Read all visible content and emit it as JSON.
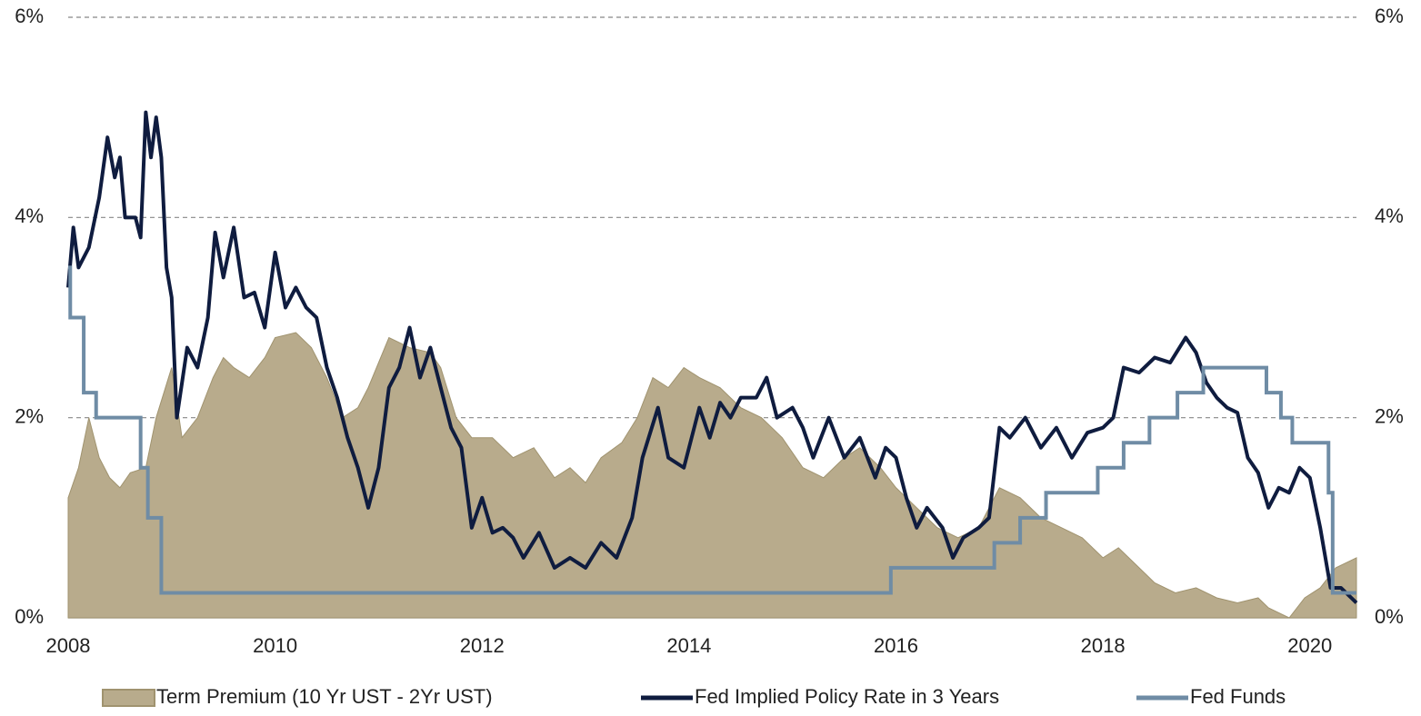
{
  "chart_data": {
    "type": "line",
    "xlim": [
      2008,
      2020.45
    ],
    "xticks": [
      2008,
      2010,
      2012,
      2014,
      2016,
      2018,
      2020
    ],
    "ylim": [
      0,
      6
    ],
    "yticks": [
      {
        "value": 0,
        "label": "0%"
      },
      {
        "value": 2,
        "label": "2%"
      },
      {
        "value": 4,
        "label": "4%"
      },
      {
        "value": 6,
        "label": "6%"
      }
    ],
    "y2lim": [
      0,
      6
    ],
    "y2ticks": [
      {
        "value": 0,
        "label": "0%"
      },
      {
        "value": 2,
        "label": "2%"
      },
      {
        "value": 4,
        "label": "4%"
      },
      {
        "value": 6,
        "label": "6%"
      }
    ],
    "grid": true,
    "legend": "bottom",
    "series": [
      {
        "name": "Term Premium (10 Yr UST - 2Yr UST)",
        "style": "area",
        "color": "#b8ab8c",
        "x": [
          2008.0,
          2008.1,
          2008.2,
          2008.3,
          2008.4,
          2008.5,
          2008.6,
          2008.75,
          2008.85,
          2009.0,
          2009.1,
          2009.25,
          2009.4,
          2009.5,
          2009.6,
          2009.75,
          2009.9,
          2010.0,
          2010.2,
          2010.35,
          2010.5,
          2010.65,
          2010.8,
          2010.9,
          2011.1,
          2011.3,
          2011.5,
          2011.6,
          2011.75,
          2011.9,
          2012.1,
          2012.3,
          2012.5,
          2012.7,
          2012.85,
          2013.0,
          2013.15,
          2013.35,
          2013.5,
          2013.65,
          2013.8,
          2013.95,
          2014.1,
          2014.3,
          2014.5,
          2014.7,
          2014.9,
          2015.1,
          2015.3,
          2015.5,
          2015.65,
          2015.85,
          2016.0,
          2016.2,
          2016.4,
          2016.6,
          2016.8,
          2017.0,
          2017.2,
          2017.4,
          2017.6,
          2017.8,
          2018.0,
          2018.15,
          2018.3,
          2018.5,
          2018.7,
          2018.9,
          2019.1,
          2019.3,
          2019.5,
          2019.6,
          2019.8,
          2019.95,
          2020.1,
          2020.25,
          2020.45
        ],
        "values": [
          1.2,
          1.5,
          2.0,
          1.6,
          1.4,
          1.3,
          1.45,
          1.5,
          2.0,
          2.5,
          1.8,
          2.0,
          2.4,
          2.6,
          2.5,
          2.4,
          2.6,
          2.8,
          2.85,
          2.7,
          2.4,
          2.0,
          2.1,
          2.3,
          2.8,
          2.7,
          2.65,
          2.5,
          2.0,
          1.8,
          1.8,
          1.6,
          1.7,
          1.4,
          1.5,
          1.35,
          1.6,
          1.75,
          2.0,
          2.4,
          2.3,
          2.5,
          2.4,
          2.3,
          2.1,
          2.0,
          1.8,
          1.5,
          1.4,
          1.6,
          1.7,
          1.5,
          1.3,
          1.1,
          0.9,
          0.8,
          0.9,
          1.3,
          1.2,
          1.0,
          0.9,
          0.8,
          0.6,
          0.7,
          0.55,
          0.35,
          0.25,
          0.3,
          0.2,
          0.15,
          0.2,
          0.1,
          0.0,
          0.2,
          0.3,
          0.5,
          0.6
        ]
      },
      {
        "name": "Fed Implied Policy Rate in 3 Years",
        "style": "line",
        "color": "#0f1c3f",
        "x": [
          2008.0,
          2008.05,
          2008.1,
          2008.2,
          2008.3,
          2008.38,
          2008.45,
          2008.5,
          2008.55,
          2008.65,
          2008.7,
          2008.75,
          2008.8,
          2008.85,
          2008.9,
          2008.95,
          2009.0,
          2009.05,
          2009.15,
          2009.25,
          2009.35,
          2009.42,
          2009.5,
          2009.6,
          2009.7,
          2009.8,
          2009.9,
          2010.0,
          2010.1,
          2010.2,
          2010.3,
          2010.4,
          2010.5,
          2010.6,
          2010.7,
          2010.8,
          2010.9,
          2011.0,
          2011.1,
          2011.2,
          2011.3,
          2011.4,
          2011.5,
          2011.6,
          2011.7,
          2011.8,
          2011.9,
          2012.0,
          2012.1,
          2012.2,
          2012.3,
          2012.4,
          2012.55,
          2012.7,
          2012.85,
          2013.0,
          2013.15,
          2013.3,
          2013.45,
          2013.55,
          2013.7,
          2013.8,
          2013.95,
          2014.1,
          2014.2,
          2014.3,
          2014.4,
          2014.5,
          2014.65,
          2014.75,
          2014.85,
          2015.0,
          2015.1,
          2015.2,
          2015.35,
          2015.5,
          2015.65,
          2015.8,
          2015.9,
          2016.0,
          2016.1,
          2016.2,
          2016.3,
          2016.45,
          2016.55,
          2016.65,
          2016.8,
          2016.9,
          2017.0,
          2017.1,
          2017.25,
          2017.4,
          2017.55,
          2017.7,
          2017.85,
          2018.0,
          2018.1,
          2018.2,
          2018.35,
          2018.5,
          2018.65,
          2018.8,
          2018.9,
          2019.0,
          2019.1,
          2019.2,
          2019.3,
          2019.4,
          2019.5,
          2019.6,
          2019.7,
          2019.8,
          2019.9,
          2020.0,
          2020.1,
          2020.2,
          2020.3,
          2020.45
        ],
        "values": [
          3.3,
          3.9,
          3.5,
          3.7,
          4.2,
          4.8,
          4.4,
          4.6,
          4.0,
          4.0,
          3.8,
          5.05,
          4.6,
          5.0,
          4.6,
          3.5,
          3.2,
          2.0,
          2.7,
          2.5,
          3.0,
          3.85,
          3.4,
          3.9,
          3.2,
          3.25,
          2.9,
          3.65,
          3.1,
          3.3,
          3.1,
          3.0,
          2.5,
          2.2,
          1.8,
          1.5,
          1.1,
          1.5,
          2.3,
          2.5,
          2.9,
          2.4,
          2.7,
          2.3,
          1.9,
          1.7,
          0.9,
          1.2,
          0.85,
          0.9,
          0.8,
          0.6,
          0.85,
          0.5,
          0.6,
          0.5,
          0.75,
          0.6,
          1.0,
          1.6,
          2.1,
          1.6,
          1.5,
          2.1,
          1.8,
          2.15,
          2.0,
          2.2,
          2.2,
          2.4,
          2.0,
          2.1,
          1.9,
          1.6,
          2.0,
          1.6,
          1.8,
          1.4,
          1.7,
          1.6,
          1.2,
          0.9,
          1.1,
          0.9,
          0.6,
          0.8,
          0.9,
          1.0,
          1.9,
          1.8,
          2.0,
          1.7,
          1.9,
          1.6,
          1.85,
          1.9,
          2.0,
          2.5,
          2.45,
          2.6,
          2.55,
          2.8,
          2.65,
          2.35,
          2.2,
          2.1,
          2.05,
          1.6,
          1.45,
          1.1,
          1.3,
          1.25,
          1.5,
          1.4,
          0.9,
          0.3,
          0.3,
          0.15
        ]
      },
      {
        "name": "Fed Funds",
        "style": "step",
        "color": "#6f8ca5",
        "x": [
          2008.0,
          2008.02,
          2008.15,
          2008.27,
          2008.7,
          2008.77,
          2008.9,
          2015.95,
          2016.95,
          2017.2,
          2017.45,
          2017.95,
          2018.2,
          2018.45,
          2018.72,
          2018.97,
          2019.58,
          2019.72,
          2019.83,
          2020.18,
          2020.22,
          2020.45
        ],
        "values": [
          3.5,
          3.0,
          2.25,
          2.0,
          1.5,
          1.0,
          0.25,
          0.5,
          0.75,
          1.0,
          1.25,
          1.5,
          1.75,
          2.0,
          2.25,
          2.5,
          2.25,
          2.0,
          1.75,
          1.25,
          0.25,
          0.25
        ]
      }
    ]
  }
}
